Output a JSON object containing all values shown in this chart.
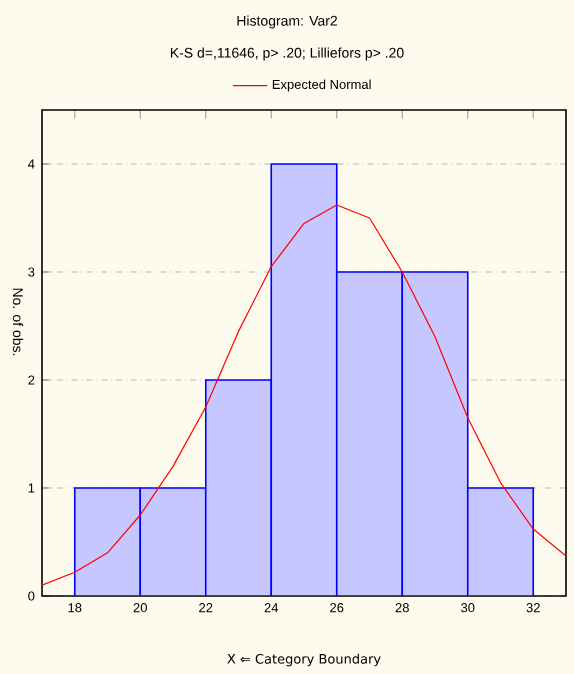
{
  "chart_data": {
    "type": "histogram",
    "title": "Histogram: Var2",
    "subtitle": "K-S d=,11646, p> .20; Lilliefors p> .20",
    "xlabel": "X ⇐ Category Boundary",
    "ylabel": "No. of obs.",
    "bins": [
      18,
      20,
      22,
      24,
      26,
      28,
      30,
      32
    ],
    "values": [
      1,
      1,
      2,
      4,
      3,
      3,
      1
    ],
    "color": "#0000ff",
    "series": [
      {
        "name": "Expected Normal",
        "type": "line",
        "color": "#ff0000",
        "x": [
          17,
          18,
          19,
          20,
          21,
          22,
          23,
          24,
          25,
          26,
          27,
          28,
          29,
          30,
          31,
          32,
          33
        ],
        "values": [
          0.1,
          0.22,
          0.4,
          0.75,
          1.2,
          1.75,
          2.45,
          3.05,
          3.45,
          3.62,
          3.5,
          3.0,
          2.4,
          1.65,
          1.05,
          0.62,
          0.37
        ]
      }
    ],
    "xlim": [
      17,
      33
    ],
    "ylim": [
      0,
      4.5
    ],
    "xticks": [
      18,
      20,
      22,
      24,
      26,
      28,
      30,
      32
    ],
    "yticks": [
      0,
      1,
      2,
      3,
      4
    ],
    "grid": "y",
    "legend": "top",
    "line_style": "solid"
  }
}
